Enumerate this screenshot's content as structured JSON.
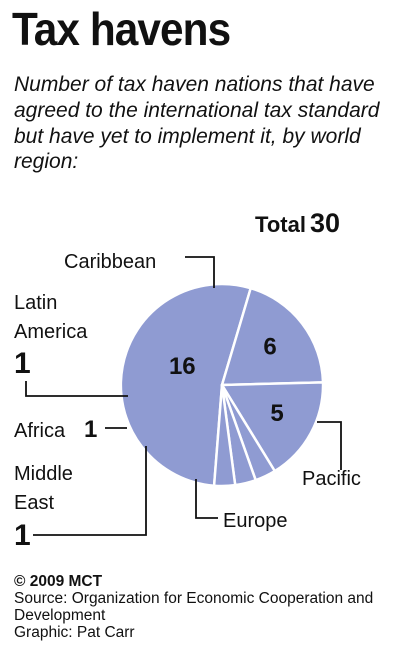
{
  "title": "Tax havens",
  "subtitle": "Number of tax haven nations that have agreed to the international tax standard but have yet to implement it, by world region:",
  "total": {
    "label": "Total",
    "value": "30"
  },
  "chart_data": {
    "type": "pie",
    "title": "Tax havens",
    "subtitle": "Number of tax haven nations that have agreed to the international tax standard but have yet to implement it, by world region:",
    "total": 30,
    "slices": [
      {
        "label": "Caribbean",
        "value": 16,
        "value_text": "16"
      },
      {
        "label": "Pacific",
        "value": 6,
        "value_text": "6"
      },
      {
        "label": "Europe",
        "value": 5,
        "value_text": "5"
      },
      {
        "label": "Middle East",
        "value": 1,
        "value_text": "1"
      },
      {
        "label": "Africa",
        "value": 1,
        "value_text": "1"
      },
      {
        "label": "Latin America",
        "value": 1,
        "value_text": "1"
      }
    ],
    "colors": {
      "slice": "#8f9bd2",
      "edge": "#ffffff",
      "leader": "#111111"
    }
  },
  "footer": {
    "copyright": "© 2009 MCT",
    "source": "Source: Organization for Economic Cooperation and Development",
    "graphic": "Graphic: Pat Carr"
  }
}
